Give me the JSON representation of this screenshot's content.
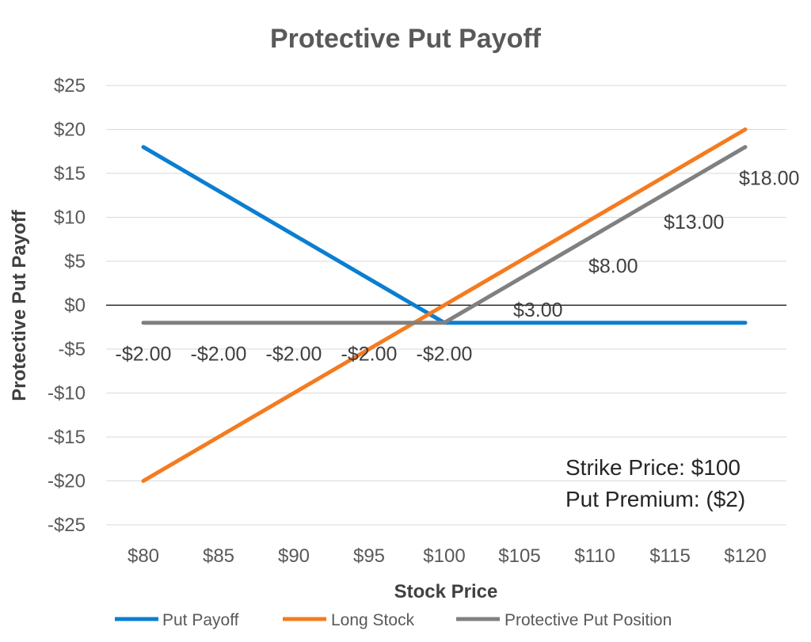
{
  "chart_data": {
    "type": "line",
    "title": "Protective Put Payoff",
    "xlabel": "Stock Price",
    "ylabel": "Protective Put Payoff",
    "x": [
      80,
      85,
      90,
      95,
      100,
      105,
      110,
      115,
      120
    ],
    "x_tick_labels": [
      "$80",
      "$85",
      "$90",
      "$95",
      "$100",
      "$105",
      "$110",
      "$115",
      "$120"
    ],
    "ylim": [
      -25,
      25
    ],
    "y_ticks": [
      25,
      20,
      15,
      10,
      5,
      0,
      -5,
      -10,
      -15,
      -20,
      -25
    ],
    "y_tick_labels": [
      "$25",
      "$20",
      "$15",
      "$10",
      "$5",
      "$0",
      "-$5",
      "-$10",
      "-$15",
      "-$20",
      "-$25"
    ],
    "grid": true,
    "legend_position": "bottom",
    "series": [
      {
        "name": "Put Payoff",
        "color": "#0a7fd1",
        "values": [
          18,
          13,
          8,
          3,
          -2,
          -2,
          -2,
          -2,
          -2
        ]
      },
      {
        "name": "Long Stock",
        "color": "#f47b20",
        "values": [
          -20,
          -15,
          -10,
          -5,
          0,
          5,
          10,
          15,
          20
        ]
      },
      {
        "name": "Protective Put Position",
        "color": "#808080",
        "values": [
          -2,
          -2,
          -2,
          -2,
          -2,
          3,
          8,
          13,
          18
        ]
      }
    ],
    "data_labels": {
      "series": "Protective Put Position",
      "labels": [
        "-$2.00",
        "-$2.00",
        "-$2.00",
        "-$2.00",
        "-$2.00",
        "$3.00",
        "$8.00",
        "$13.00",
        "$18.00"
      ]
    },
    "annotations": [
      "Strike Price: $100",
      "Put Premium: ($2)"
    ]
  }
}
